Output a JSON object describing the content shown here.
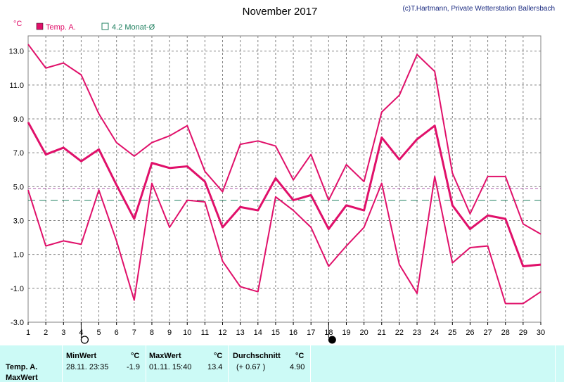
{
  "copyright": "(c)T.Hartmann, Private Wetterstation Ballersbach",
  "colors": {
    "series": "#e0106a",
    "avg_line": "#b060b0",
    "month_avg": "#208060",
    "grid": "#808080",
    "table_bg": "#ccfaf6"
  },
  "chart_data": {
    "type": "line",
    "title": "November 2017",
    "ylabel": "°C",
    "xlabel": "",
    "ylim": [
      -3.0,
      13.9
    ],
    "yticks": [
      "13.0",
      "11.0",
      "9.0",
      "7.0",
      "5.0",
      "3.0",
      "1.0",
      "-1.0",
      "-3.0"
    ],
    "x": [
      1,
      2,
      3,
      4,
      5,
      6,
      7,
      8,
      9,
      10,
      11,
      12,
      13,
      14,
      15,
      16,
      17,
      18,
      19,
      20,
      21,
      22,
      23,
      24,
      25,
      26,
      27,
      28,
      29,
      30
    ],
    "grid": true,
    "legend_position": "top-left",
    "legend": [
      {
        "name": "Temp. A.",
        "icon": "filled-square-icon"
      },
      {
        "name": "4.2 Monat-Ø",
        "icon": "hollow-square-icon"
      }
    ],
    "series": [
      {
        "name": "Temp. A.",
        "role": "max",
        "values": [
          13.4,
          12.0,
          12.3,
          11.6,
          9.3,
          7.6,
          6.8,
          7.6,
          8.0,
          8.6,
          5.9,
          4.7,
          7.5,
          7.7,
          7.4,
          5.4,
          6.9,
          4.2,
          6.3,
          5.3,
          9.4,
          10.4,
          12.8,
          11.8,
          5.8,
          3.4,
          5.6,
          5.6,
          2.8,
          2.2
        ]
      },
      {
        "name": "Temp. A.",
        "role": "mean",
        "values": [
          8.8,
          6.9,
          7.3,
          6.5,
          7.2,
          5.1,
          3.1,
          6.4,
          6.1,
          6.2,
          5.3,
          2.6,
          3.8,
          3.6,
          5.5,
          4.2,
          4.5,
          2.5,
          3.9,
          3.6,
          7.9,
          6.6,
          7.8,
          8.6,
          3.9,
          2.5,
          3.3,
          3.1,
          0.3,
          0.4
        ]
      },
      {
        "name": "Temp. A.",
        "role": "min",
        "values": [
          4.8,
          1.5,
          1.8,
          1.6,
          4.8,
          1.8,
          -1.7,
          5.2,
          2.6,
          4.2,
          4.1,
          0.6,
          -0.9,
          -1.2,
          4.4,
          3.6,
          2.6,
          0.3,
          1.5,
          2.6,
          5.2,
          0.4,
          -1.3,
          5.6,
          0.5,
          1.4,
          1.5,
          -1.9,
          -1.9,
          -1.2
        ]
      }
    ],
    "reference_lines": [
      {
        "label": "average",
        "value": 4.9,
        "style": "dashed",
        "color": "#b060b0"
      },
      {
        "label": "4.2 Monat-Ø",
        "value": 4.2,
        "style": "dashed",
        "color": "#208060"
      }
    ],
    "moon_phases": [
      {
        "day": 4,
        "phase": "full-moon-icon"
      },
      {
        "day": 18,
        "phase": "new-moon-icon"
      }
    ]
  },
  "table": {
    "row_label_1": "Temp. A.",
    "row_label_2": "MaxWert",
    "min": {
      "header": "MinWert",
      "unit": "°C",
      "datetime": "28.11.  23:35",
      "value": "-1.9"
    },
    "max": {
      "header": "MaxWert",
      "unit": "°C",
      "datetime": "01.11.  15:40",
      "value": "13.4"
    },
    "avg": {
      "header": "Durchschnitt",
      "unit": "°C",
      "delta": "(+ 0.67 )",
      "value": "4.90"
    }
  }
}
